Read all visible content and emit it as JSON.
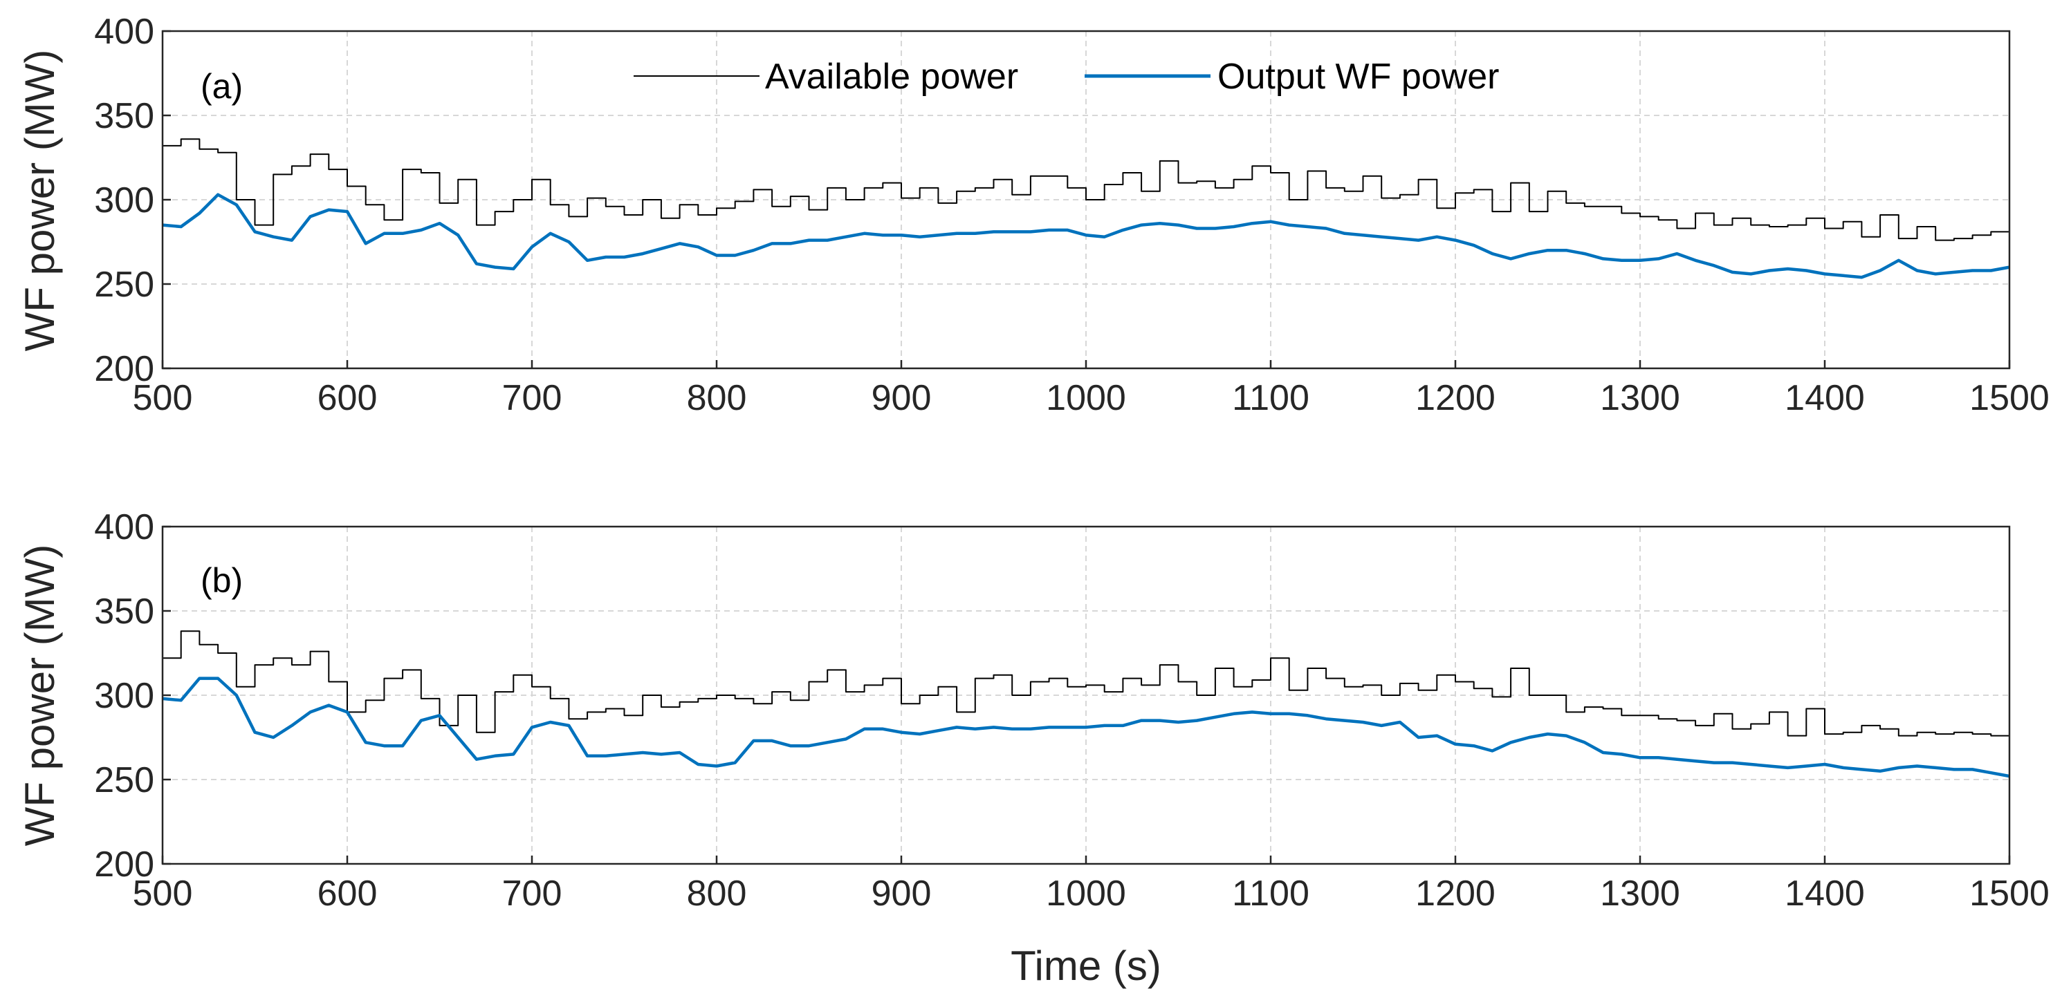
{
  "chart_data": [
    {
      "type": "line",
      "panel": "(a)",
      "xlabel": "",
      "ylabel": "WF power (MW)",
      "xlim": [
        500,
        1500
      ],
      "ylim": [
        200,
        400
      ],
      "x_ticks": [
        500,
        600,
        700,
        800,
        900,
        1000,
        1100,
        1200,
        1300,
        1400,
        1500
      ],
      "y_ticks": [
        200,
        250,
        300,
        350,
        400
      ],
      "grid": true,
      "legend": {
        "placement": "top-center",
        "entries": [
          "Available power",
          "Output WF power"
        ]
      },
      "series": [
        {
          "name": "Available power",
          "style": "step",
          "color": "#000000",
          "x": [
            500,
            510,
            520,
            530,
            540,
            550,
            560,
            570,
            580,
            590,
            600,
            610,
            620,
            630,
            640,
            650,
            660,
            670,
            680,
            690,
            700,
            710,
            720,
            730,
            740,
            750,
            760,
            770,
            780,
            790,
            800,
            810,
            820,
            830,
            840,
            850,
            860,
            870,
            880,
            890,
            900,
            910,
            920,
            930,
            940,
            950,
            960,
            970,
            980,
            990,
            1000,
            1010,
            1020,
            1030,
            1040,
            1050,
            1060,
            1070,
            1080,
            1090,
            1100,
            1110,
            1120,
            1130,
            1140,
            1150,
            1160,
            1170,
            1180,
            1190,
            1200,
            1210,
            1220,
            1230,
            1240,
            1250,
            1260,
            1270,
            1280,
            1290,
            1300,
            1310,
            1320,
            1330,
            1340,
            1350,
            1360,
            1370,
            1380,
            1390,
            1400,
            1410,
            1420,
            1430,
            1440,
            1450,
            1460,
            1470,
            1480,
            1490,
            1500
          ],
          "values": [
            332,
            336,
            330,
            328,
            300,
            285,
            315,
            320,
            327,
            318,
            308,
            297,
            288,
            318,
            316,
            298,
            312,
            285,
            293,
            300,
            312,
            297,
            290,
            301,
            296,
            291,
            300,
            289,
            297,
            291,
            295,
            299,
            306,
            296,
            302,
            294,
            307,
            300,
            307,
            310,
            301,
            307,
            298,
            305,
            307,
            312,
            303,
            314,
            314,
            307,
            300,
            309,
            316,
            305,
            323,
            310,
            311,
            307,
            312,
            320,
            316,
            300,
            317,
            307,
            305,
            314,
            301,
            303,
            312,
            295,
            304,
            306,
            293,
            310,
            293,
            305,
            298,
            296,
            296,
            292,
            290,
            288,
            283,
            292,
            285,
            289,
            285,
            284,
            285,
            289,
            283,
            287,
            278,
            291,
            277,
            284,
            276,
            277,
            279,
            281,
            281
          ]
        },
        {
          "name": "Output WF power",
          "style": "line",
          "color": "#0072BD",
          "x": [
            500,
            510,
            520,
            530,
            540,
            550,
            560,
            570,
            580,
            590,
            600,
            610,
            620,
            630,
            640,
            650,
            660,
            670,
            680,
            690,
            700,
            710,
            720,
            730,
            740,
            750,
            760,
            770,
            780,
            790,
            800,
            810,
            820,
            830,
            840,
            850,
            860,
            870,
            880,
            890,
            900,
            910,
            920,
            930,
            940,
            950,
            960,
            970,
            980,
            990,
            1000,
            1010,
            1020,
            1030,
            1040,
            1050,
            1060,
            1070,
            1080,
            1090,
            1100,
            1110,
            1120,
            1130,
            1140,
            1150,
            1160,
            1170,
            1180,
            1190,
            1200,
            1210,
            1220,
            1230,
            1240,
            1250,
            1260,
            1270,
            1280,
            1290,
            1300,
            1310,
            1320,
            1330,
            1340,
            1350,
            1360,
            1370,
            1380,
            1390,
            1400,
            1410,
            1420,
            1430,
            1440,
            1450,
            1460,
            1470,
            1480,
            1490,
            1500
          ],
          "values": [
            285,
            284,
            292,
            303,
            297,
            281,
            278,
            276,
            290,
            294,
            293,
            274,
            280,
            280,
            282,
            286,
            279,
            262,
            260,
            259,
            272,
            280,
            275,
            264,
            266,
            266,
            268,
            271,
            274,
            272,
            267,
            267,
            270,
            274,
            274,
            276,
            276,
            278,
            280,
            279,
            279,
            278,
            279,
            280,
            280,
            281,
            281,
            281,
            282,
            282,
            279,
            278,
            282,
            285,
            286,
            285,
            283,
            283,
            284,
            286,
            287,
            285,
            284,
            283,
            280,
            279,
            278,
            277,
            276,
            278,
            276,
            273,
            268,
            265,
            268,
            270,
            270,
            268,
            265,
            264,
            264,
            265,
            268,
            264,
            261,
            257,
            256,
            258,
            259,
            258,
            256,
            255,
            254,
            258,
            264,
            258,
            256,
            257,
            258,
            258,
            260
          ]
        }
      ]
    },
    {
      "type": "line",
      "panel": "(b)",
      "xlabel": "Time (s)",
      "ylabel": "WF power (MW)",
      "xlim": [
        500,
        1500
      ],
      "ylim": [
        200,
        400
      ],
      "x_ticks": [
        500,
        600,
        700,
        800,
        900,
        1000,
        1100,
        1200,
        1300,
        1400,
        1500
      ],
      "y_ticks": [
        200,
        250,
        300,
        350,
        400
      ],
      "grid": true,
      "series": [
        {
          "name": "Available power",
          "style": "step",
          "color": "#000000",
          "x": [
            500,
            510,
            520,
            530,
            540,
            550,
            560,
            570,
            580,
            590,
            600,
            610,
            620,
            630,
            640,
            650,
            660,
            670,
            680,
            690,
            700,
            710,
            720,
            730,
            740,
            750,
            760,
            770,
            780,
            790,
            800,
            810,
            820,
            830,
            840,
            850,
            860,
            870,
            880,
            890,
            900,
            910,
            920,
            930,
            940,
            950,
            960,
            970,
            980,
            990,
            1000,
            1010,
            1020,
            1030,
            1040,
            1050,
            1060,
            1070,
            1080,
            1090,
            1100,
            1110,
            1120,
            1130,
            1140,
            1150,
            1160,
            1170,
            1180,
            1190,
            1200,
            1210,
            1220,
            1230,
            1240,
            1250,
            1260,
            1270,
            1280,
            1290,
            1300,
            1310,
            1320,
            1330,
            1340,
            1350,
            1360,
            1370,
            1380,
            1390,
            1400,
            1410,
            1420,
            1430,
            1440,
            1450,
            1460,
            1470,
            1480,
            1490,
            1500
          ],
          "values": [
            322,
            338,
            330,
            325,
            305,
            318,
            322,
            318,
            326,
            308,
            290,
            297,
            310,
            315,
            298,
            282,
            300,
            278,
            302,
            312,
            305,
            298,
            286,
            290,
            292,
            288,
            300,
            293,
            296,
            298,
            300,
            298,
            295,
            302,
            297,
            308,
            315,
            302,
            306,
            310,
            295,
            300,
            305,
            290,
            310,
            312,
            300,
            308,
            310,
            305,
            306,
            302,
            310,
            306,
            318,
            308,
            300,
            316,
            305,
            309,
            322,
            303,
            316,
            310,
            305,
            306,
            300,
            307,
            303,
            312,
            308,
            304,
            299,
            316,
            300,
            300,
            290,
            293,
            292,
            288,
            288,
            286,
            285,
            282,
            289,
            280,
            283,
            290,
            276,
            292,
            277,
            278,
            282,
            280,
            276,
            278,
            277,
            278,
            277,
            276,
            280
          ]
        },
        {
          "name": "Output WF power",
          "style": "line",
          "color": "#0072BD",
          "x": [
            500,
            510,
            520,
            530,
            540,
            550,
            560,
            570,
            580,
            590,
            600,
            610,
            620,
            630,
            640,
            650,
            660,
            670,
            680,
            690,
            700,
            710,
            720,
            730,
            740,
            750,
            760,
            770,
            780,
            790,
            800,
            810,
            820,
            830,
            840,
            850,
            860,
            870,
            880,
            890,
            900,
            910,
            920,
            930,
            940,
            950,
            960,
            970,
            980,
            990,
            1000,
            1010,
            1020,
            1030,
            1040,
            1050,
            1060,
            1070,
            1080,
            1090,
            1100,
            1110,
            1120,
            1130,
            1140,
            1150,
            1160,
            1170,
            1180,
            1190,
            1200,
            1210,
            1220,
            1230,
            1240,
            1250,
            1260,
            1270,
            1280,
            1290,
            1300,
            1310,
            1320,
            1330,
            1340,
            1350,
            1360,
            1370,
            1380,
            1390,
            1400,
            1410,
            1420,
            1430,
            1440,
            1450,
            1460,
            1470,
            1480,
            1490,
            1500
          ],
          "values": [
            298,
            297,
            310,
            310,
            300,
            278,
            275,
            282,
            290,
            294,
            290,
            272,
            270,
            270,
            285,
            288,
            275,
            262,
            264,
            265,
            281,
            284,
            282,
            264,
            264,
            265,
            266,
            265,
            266,
            259,
            258,
            260,
            273,
            273,
            270,
            270,
            272,
            274,
            280,
            280,
            278,
            277,
            279,
            281,
            280,
            281,
            280,
            280,
            281,
            281,
            281,
            282,
            282,
            285,
            285,
            284,
            285,
            287,
            289,
            290,
            289,
            289,
            288,
            286,
            285,
            284,
            282,
            284,
            275,
            276,
            271,
            270,
            267,
            272,
            275,
            277,
            276,
            272,
            266,
            265,
            263,
            263,
            262,
            261,
            260,
            260,
            259,
            258,
            257,
            258,
            259,
            257,
            256,
            255,
            257,
            258,
            257,
            256,
            256,
            254,
            252
          ]
        }
      ]
    }
  ]
}
